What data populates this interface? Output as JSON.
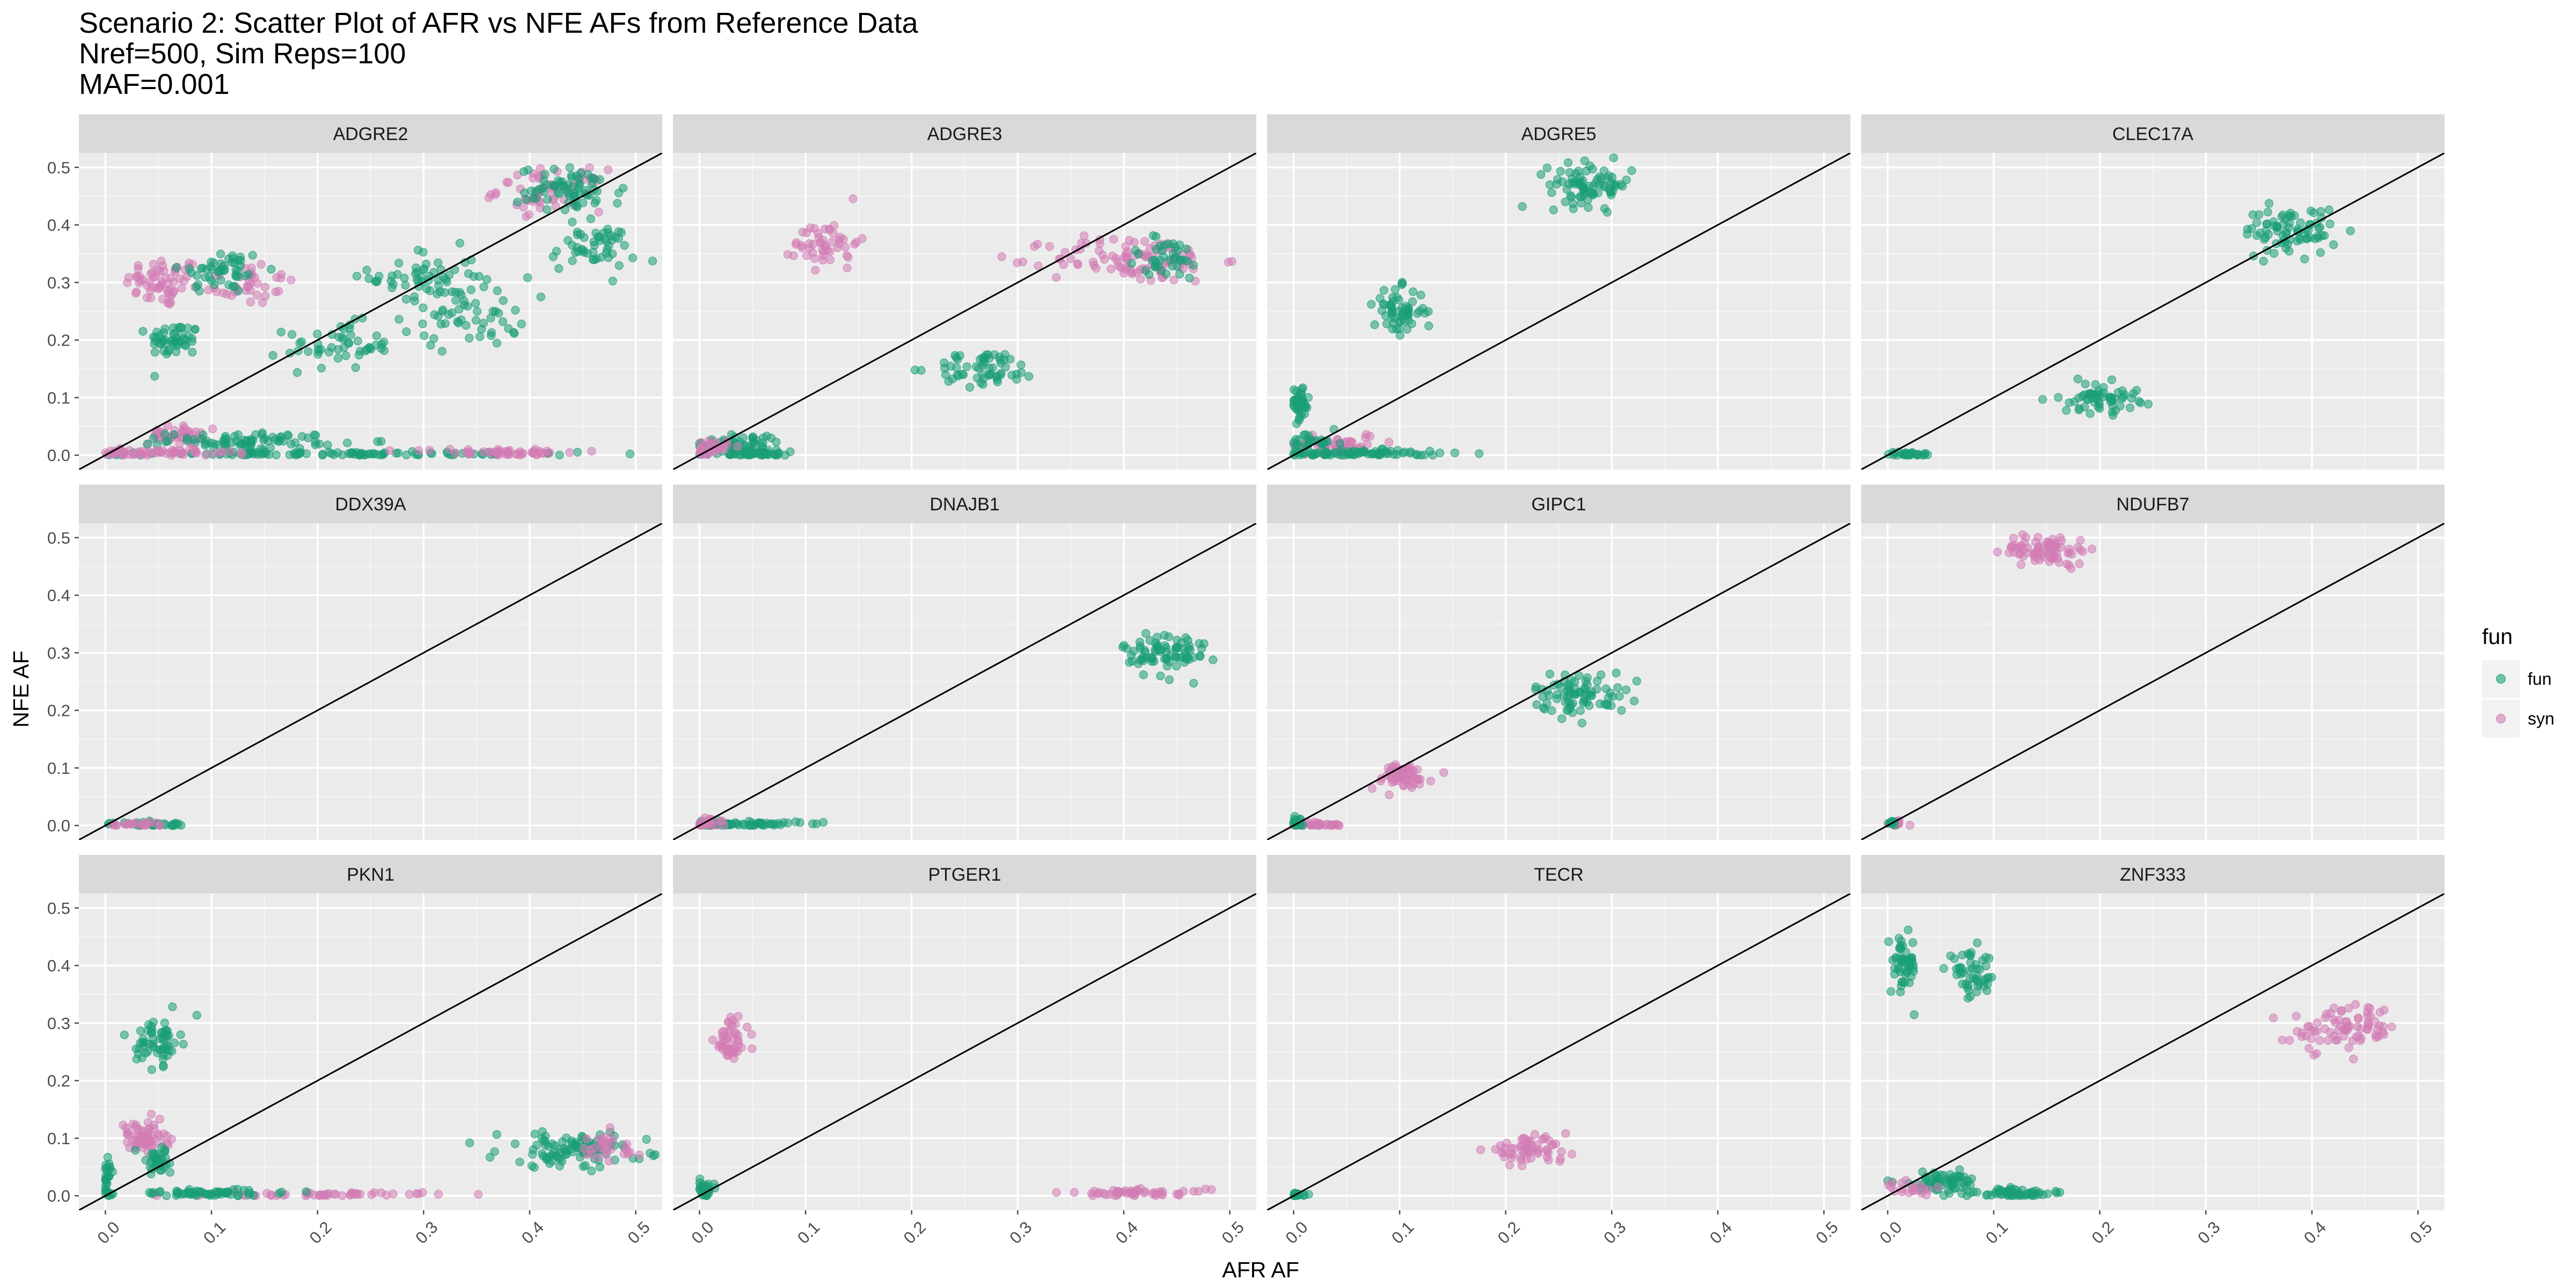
{
  "title": [
    "Scenario 2: Scatter Plot of AFR vs NFE AFs from Reference Data",
    "Nref=500, Sim Reps=100",
    "MAF=0.001"
  ],
  "colors": {
    "fun": "#1a9e77",
    "syn": "#d17cb4",
    "panel_bg": "#ebebeb",
    "strip_bg": "#d9d9d9",
    "grid_major": "#ffffff",
    "tick": "#4d4d4d"
  },
  "chart_data": {
    "type": "scatter",
    "xlabel": "AFR AF",
    "ylabel": "NFE AF",
    "xlim": [
      -0.025,
      0.525
    ],
    "ylim": [
      -0.025,
      0.525
    ],
    "x_ticks": [
      "0.0",
      "0.1",
      "0.2",
      "0.3",
      "0.4",
      "0.5"
    ],
    "y_ticks": [
      "0.0",
      "0.1",
      "0.2",
      "0.3",
      "0.4",
      "0.5"
    ],
    "reference_line": "y = x",
    "grid": true,
    "point_alpha": 0.55,
    "legend": {
      "title": "fun",
      "position": "right",
      "entries": [
        {
          "label": "fun",
          "color": "#1a9e77"
        },
        {
          "label": "syn",
          "color": "#d17cb4"
        }
      ]
    },
    "panels": [
      {
        "name": "ADGRE2",
        "clusters": [
          {
            "fun": "syn",
            "cx": 0.055,
            "cy": 0.3,
            "sx": 0.018,
            "sy": 0.022,
            "n": 60
          },
          {
            "fun": "syn",
            "cx": 0.13,
            "cy": 0.3,
            "sx": 0.025,
            "sy": 0.02,
            "n": 40
          },
          {
            "fun": "fun",
            "cx": 0.11,
            "cy": 0.32,
            "sx": 0.02,
            "sy": 0.02,
            "n": 50
          },
          {
            "fun": "fun",
            "cx": 0.065,
            "cy": 0.2,
            "sx": 0.012,
            "sy": 0.015,
            "n": 50
          },
          {
            "fun": "fun",
            "cx": 0.22,
            "cy": 0.19,
            "sx": 0.025,
            "sy": 0.02,
            "n": 50
          },
          {
            "fun": "fun",
            "cx": 0.3,
            "cy": 0.31,
            "sx": 0.025,
            "sy": 0.025,
            "n": 50
          },
          {
            "fun": "fun",
            "cx": 0.34,
            "cy": 0.25,
            "sx": 0.03,
            "sy": 0.03,
            "n": 60
          },
          {
            "fun": "fun",
            "cx": 0.46,
            "cy": 0.36,
            "sx": 0.02,
            "sy": 0.02,
            "n": 50
          },
          {
            "fun": "syn",
            "cx": 0.42,
            "cy": 0.46,
            "sx": 0.025,
            "sy": 0.018,
            "n": 60
          },
          {
            "fun": "fun",
            "cx": 0.44,
            "cy": 0.46,
            "sx": 0.025,
            "sy": 0.02,
            "n": 70
          },
          {
            "fun": "syn",
            "cx": 0.065,
            "cy": 0.035,
            "sx": 0.012,
            "sy": 0.008,
            "n": 40
          },
          {
            "fun": "fun",
            "cx": 0.14,
            "cy": 0.025,
            "sx": 0.04,
            "sy": 0.007,
            "n": 80
          },
          {
            "fun": "fun",
            "cx": 0.2,
            "cy": 0.002,
            "sx": 0.12,
            "sy": 0.002,
            "n": 100
          },
          {
            "fun": "syn",
            "cx": 0.05,
            "cy": 0.004,
            "sx": 0.035,
            "sy": 0.003,
            "n": 60
          },
          {
            "fun": "syn",
            "cx": 0.37,
            "cy": 0.005,
            "sx": 0.04,
            "sy": 0.003,
            "n": 50
          }
        ]
      },
      {
        "name": "ADGRE3",
        "clusters": [
          {
            "fun": "syn",
            "cx": 0.12,
            "cy": 0.37,
            "sx": 0.015,
            "sy": 0.022,
            "n": 50
          },
          {
            "fun": "syn",
            "cx": 0.41,
            "cy": 0.34,
            "sx": 0.04,
            "sy": 0.02,
            "n": 100
          },
          {
            "fun": "fun",
            "cx": 0.44,
            "cy": 0.34,
            "sx": 0.02,
            "sy": 0.02,
            "n": 40
          },
          {
            "fun": "fun",
            "cx": 0.27,
            "cy": 0.15,
            "sx": 0.025,
            "sy": 0.015,
            "n": 60
          },
          {
            "fun": "fun",
            "cx": 0.04,
            "cy": 0.02,
            "sx": 0.02,
            "sy": 0.01,
            "n": 60
          },
          {
            "fun": "fun",
            "cx": 0.05,
            "cy": 0.002,
            "sx": 0.025,
            "sy": 0.002,
            "n": 40
          },
          {
            "fun": "syn",
            "cx": 0.01,
            "cy": 0.012,
            "sx": 0.008,
            "sy": 0.008,
            "n": 30
          }
        ]
      },
      {
        "name": "ADGRE5",
        "clusters": [
          {
            "fun": "fun",
            "cx": 0.28,
            "cy": 0.47,
            "sx": 0.02,
            "sy": 0.018,
            "n": 80
          },
          {
            "fun": "fun",
            "cx": 0.1,
            "cy": 0.25,
            "sx": 0.012,
            "sy": 0.02,
            "n": 60
          },
          {
            "fun": "fun",
            "cx": 0.005,
            "cy": 0.09,
            "sx": 0.005,
            "sy": 0.015,
            "n": 40
          },
          {
            "fun": "syn",
            "cx": 0.04,
            "cy": 0.02,
            "sx": 0.02,
            "sy": 0.01,
            "n": 50
          },
          {
            "fun": "fun",
            "cx": 0.06,
            "cy": 0.003,
            "sx": 0.04,
            "sy": 0.003,
            "n": 80
          },
          {
            "fun": "fun",
            "cx": 0.02,
            "cy": 0.02,
            "sx": 0.012,
            "sy": 0.01,
            "n": 30
          }
        ]
      },
      {
        "name": "CLEC17A",
        "clusters": [
          {
            "fun": "fun",
            "cx": 0.38,
            "cy": 0.39,
            "sx": 0.022,
            "sy": 0.02,
            "n": 80
          },
          {
            "fun": "fun",
            "cx": 0.2,
            "cy": 0.1,
            "sx": 0.018,
            "sy": 0.013,
            "n": 60
          },
          {
            "fun": "fun",
            "cx": 0.02,
            "cy": 0.002,
            "sx": 0.01,
            "sy": 0.002,
            "n": 30
          }
        ]
      },
      {
        "name": "DDX39A",
        "clusters": [
          {
            "fun": "fun",
            "cx": 0.04,
            "cy": 0.002,
            "sx": 0.018,
            "sy": 0.002,
            "n": 30
          },
          {
            "fun": "syn",
            "cx": 0.03,
            "cy": 0.002,
            "sx": 0.015,
            "sy": 0.002,
            "n": 20
          }
        ]
      },
      {
        "name": "DNAJB1",
        "clusters": [
          {
            "fun": "fun",
            "cx": 0.44,
            "cy": 0.3,
            "sx": 0.02,
            "sy": 0.02,
            "n": 80
          },
          {
            "fun": "fun",
            "cx": 0.045,
            "cy": 0.002,
            "sx": 0.025,
            "sy": 0.003,
            "n": 60
          },
          {
            "fun": "syn",
            "cx": 0.01,
            "cy": 0.005,
            "sx": 0.008,
            "sy": 0.005,
            "n": 20
          }
        ]
      },
      {
        "name": "GIPC1",
        "clusters": [
          {
            "fun": "fun",
            "cx": 0.27,
            "cy": 0.23,
            "sx": 0.022,
            "sy": 0.018,
            "n": 80
          },
          {
            "fun": "syn",
            "cx": 0.1,
            "cy": 0.085,
            "sx": 0.015,
            "sy": 0.012,
            "n": 60
          },
          {
            "fun": "syn",
            "cx": 0.025,
            "cy": 0.001,
            "sx": 0.012,
            "sy": 0.002,
            "n": 30
          },
          {
            "fun": "fun",
            "cx": 0.003,
            "cy": 0.005,
            "sx": 0.003,
            "sy": 0.005,
            "n": 15
          }
        ]
      },
      {
        "name": "NDUFB7",
        "clusters": [
          {
            "fun": "syn",
            "cx": 0.15,
            "cy": 0.48,
            "sx": 0.02,
            "sy": 0.013,
            "n": 80
          },
          {
            "fun": "syn",
            "cx": 0.008,
            "cy": 0.003,
            "sx": 0.005,
            "sy": 0.003,
            "n": 15
          },
          {
            "fun": "fun",
            "cx": 0.003,
            "cy": 0.003,
            "sx": 0.003,
            "sy": 0.003,
            "n": 8
          }
        ]
      },
      {
        "name": "PKN1",
        "clusters": [
          {
            "fun": "fun",
            "cx": 0.05,
            "cy": 0.27,
            "sx": 0.01,
            "sy": 0.02,
            "n": 60
          },
          {
            "fun": "syn",
            "cx": 0.035,
            "cy": 0.1,
            "sx": 0.012,
            "sy": 0.015,
            "n": 60
          },
          {
            "fun": "fun",
            "cx": 0.05,
            "cy": 0.06,
            "sx": 0.01,
            "sy": 0.012,
            "n": 40
          },
          {
            "fun": "fun",
            "cx": 0.002,
            "cy": 0.03,
            "sx": 0.002,
            "sy": 0.02,
            "n": 30
          },
          {
            "fun": "syn",
            "cx": 0.2,
            "cy": 0.002,
            "sx": 0.05,
            "sy": 0.002,
            "n": 50
          },
          {
            "fun": "fun",
            "cx": 0.1,
            "cy": 0.005,
            "sx": 0.04,
            "sy": 0.003,
            "n": 60
          },
          {
            "fun": "fun",
            "cx": 0.44,
            "cy": 0.08,
            "sx": 0.035,
            "sy": 0.015,
            "n": 100
          },
          {
            "fun": "syn",
            "cx": 0.47,
            "cy": 0.08,
            "sx": 0.02,
            "sy": 0.015,
            "n": 30
          }
        ]
      },
      {
        "name": "PTGER1",
        "clusters": [
          {
            "fun": "syn",
            "cx": 0.03,
            "cy": 0.27,
            "sx": 0.008,
            "sy": 0.02,
            "n": 50
          },
          {
            "fun": "syn",
            "cx": 0.41,
            "cy": 0.005,
            "sx": 0.035,
            "sy": 0.003,
            "n": 50
          },
          {
            "fun": "fun",
            "cx": 0.005,
            "cy": 0.012,
            "sx": 0.004,
            "sy": 0.008,
            "n": 25
          }
        ]
      },
      {
        "name": "TECR",
        "clusters": [
          {
            "fun": "syn",
            "cx": 0.22,
            "cy": 0.08,
            "sx": 0.02,
            "sy": 0.01,
            "n": 60
          },
          {
            "fun": "fun",
            "cx": 0.005,
            "cy": 0.002,
            "sx": 0.006,
            "sy": 0.002,
            "n": 15
          }
        ]
      },
      {
        "name": "ZNF333",
        "clusters": [
          {
            "fun": "fun",
            "cx": 0.015,
            "cy": 0.4,
            "sx": 0.006,
            "sy": 0.025,
            "n": 50
          },
          {
            "fun": "fun",
            "cx": 0.08,
            "cy": 0.38,
            "sx": 0.012,
            "sy": 0.02,
            "n": 50
          },
          {
            "fun": "syn",
            "cx": 0.43,
            "cy": 0.29,
            "sx": 0.025,
            "sy": 0.02,
            "n": 80
          },
          {
            "fun": "fun",
            "cx": 0.12,
            "cy": 0.005,
            "sx": 0.025,
            "sy": 0.004,
            "n": 60
          },
          {
            "fun": "fun",
            "cx": 0.05,
            "cy": 0.025,
            "sx": 0.02,
            "sy": 0.008,
            "n": 60
          },
          {
            "fun": "syn",
            "cx": 0.02,
            "cy": 0.01,
            "sx": 0.012,
            "sy": 0.006,
            "n": 20
          }
        ]
      }
    ]
  }
}
